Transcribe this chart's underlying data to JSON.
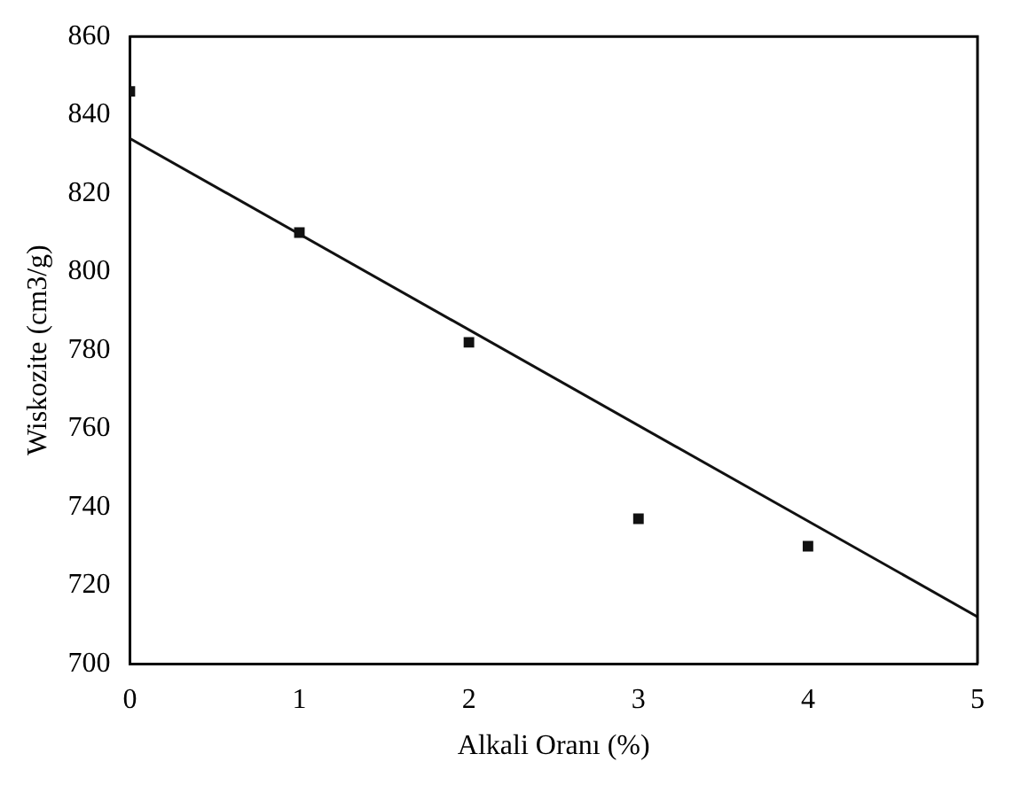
{
  "chart_data": {
    "type": "scatter",
    "xlabel": "Alkali Oranı (%)",
    "ylabel": "Wiskozite (cm3/g)",
    "x": [
      0,
      1,
      2,
      3,
      4
    ],
    "series": [
      {
        "color": "#111111",
        "marker": "square",
        "values": [
          846,
          810,
          782,
          737,
          730
        ]
      },
      {
        "type": "line",
        "color": "#111111",
        "marker": "none",
        "x": [
          0,
          5
        ],
        "values": [
          834,
          712
        ]
      }
    ],
    "xlim": [
      0,
      5
    ],
    "ylim": [
      700,
      860
    ],
    "xticks": [
      0,
      1,
      2,
      3,
      4,
      5
    ],
    "yticks": [
      700,
      720,
      740,
      760,
      780,
      800,
      820,
      840,
      860
    ],
    "grid": false,
    "legend": false
  }
}
